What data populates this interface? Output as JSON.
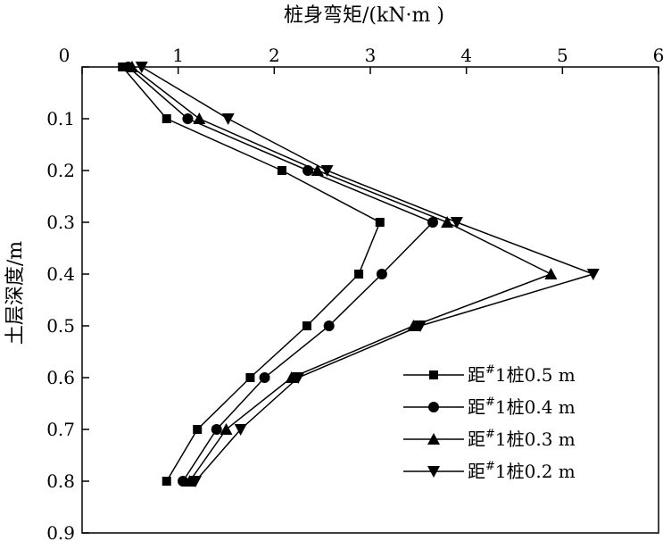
{
  "chart_data": {
    "type": "line",
    "orientation": "depth-profile",
    "title": "",
    "xlabel": "桩身弯矩/(kN·m )",
    "ylabel": "土层深度/m",
    "xlim": [
      0,
      6
    ],
    "ylim": [
      0,
      0.9
    ],
    "x_axis_position": "top",
    "y_axis_inverted": true,
    "x_ticks": [
      "0",
      "1",
      "2",
      "3",
      "4",
      "5",
      "6"
    ],
    "y_ticks": [
      "0",
      "0.1",
      "0.2",
      "0.3",
      "0.4",
      "0.5",
      "0.6",
      "0.7",
      "0.8",
      "0.9"
    ],
    "depths": [
      0,
      0.1,
      0.2,
      0.3,
      0.4,
      0.5,
      0.6,
      0.7,
      0.8
    ],
    "grid": false,
    "legend_position": "bottom-right",
    "series": [
      {
        "name": "距#1桩0.5 m",
        "label_prefix": "距",
        "label_sup": "#",
        "label_suffix": "1桩0.5 m",
        "marker": "square",
        "moments": [
          0.42,
          0.88,
          2.08,
          3.1,
          2.88,
          2.34,
          1.75,
          1.2,
          0.88
        ]
      },
      {
        "name": "距#1桩0.4 m",
        "label_prefix": "距",
        "label_sup": "#",
        "label_suffix": "1桩0.4 m",
        "marker": "circle",
        "moments": [
          0.48,
          1.1,
          2.35,
          3.65,
          3.12,
          2.57,
          1.9,
          1.4,
          1.05
        ]
      },
      {
        "name": "距#1桩0.3 m",
        "label_prefix": "距",
        "label_sup": "#",
        "label_suffix": "1桩0.3 m",
        "marker": "triangle-up",
        "moments": [
          0.52,
          1.22,
          2.45,
          3.8,
          4.88,
          3.45,
          2.18,
          1.5,
          1.12
        ]
      },
      {
        "name": "距#1桩0.2 m",
        "label_prefix": "距",
        "label_sup": "#",
        "label_suffix": "1桩0.2 m",
        "marker": "triangle-down",
        "moments": [
          0.62,
          1.52,
          2.55,
          3.9,
          5.32,
          3.52,
          2.25,
          1.65,
          1.18
        ]
      }
    ]
  }
}
